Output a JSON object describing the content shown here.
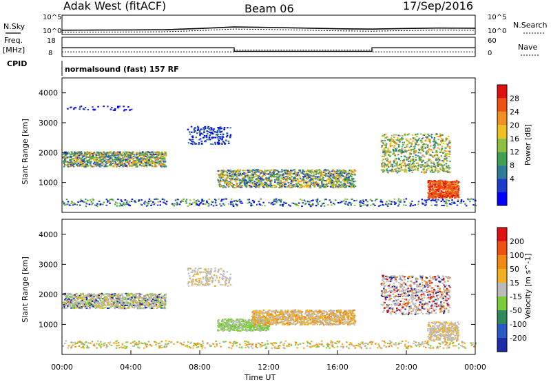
{
  "header": {
    "title": "Adak West (fitACF)",
    "beam": "Beam 06",
    "date": "17/Sep/2016"
  },
  "panels": {
    "nsky_label": "N.Sky",
    "nsky_ticks": [
      "10^5",
      "10^0"
    ],
    "nsearch_label": "N.Search",
    "nsearch_ticks": [
      "10^5",
      "10^0"
    ],
    "freq_label": "Freq.",
    "freq_unit": "[MHz]",
    "freq_ticks": [
      "18",
      "8"
    ],
    "nave_label": "Nave",
    "nave_ticks": [
      "60",
      "0"
    ],
    "cpid_label": "CPID",
    "cpid_value": "normalsound (fast) 157 RF"
  },
  "chart_data": [
    {
      "type": "line",
      "name": "nsky-nsearch",
      "x": [
        "00:00",
        "02:00",
        "04:00",
        "06:00",
        "08:00",
        "10:00",
        "12:00",
        "14:00",
        "16:00",
        "18:00",
        "20:00",
        "22:00",
        "24:00"
      ],
      "series": [
        {
          "name": "N.Sky",
          "values": [
            10,
            11,
            12,
            14,
            30,
            80,
            60,
            40,
            25,
            20,
            30,
            40,
            35
          ]
        }
      ],
      "ylim": [
        1,
        100000
      ],
      "yscale": "log"
    },
    {
      "type": "line",
      "name": "freq-nave",
      "x": [
        "00:00",
        "10:00",
        "10:00",
        "18:00",
        "18:00",
        "24:00"
      ],
      "series": [
        {
          "name": "Freq.",
          "values": [
            12.5,
            12.5,
            10.5,
            10.5,
            12.5,
            12.5
          ]
        },
        {
          "name": "Nave",
          "values": [
            11,
            11,
            12,
            12,
            11,
            11
          ]
        }
      ],
      "ylim": [
        8,
        18
      ]
    },
    {
      "type": "heatmap",
      "name": "power",
      "ylabel": "Slant Range [km]",
      "colorbar_label": "Power [dB]",
      "colorbar_ticks": [
        "28",
        "24",
        "20",
        "16",
        "12",
        "8",
        "4"
      ],
      "colors": [
        "#0000ff",
        "#1e3ccc",
        "#2e7d96",
        "#40a050",
        "#8cc040",
        "#f0c020",
        "#f09020",
        "#f05010",
        "#e01010"
      ],
      "ylim": [
        0,
        4500
      ],
      "yticks": [
        1000,
        2000,
        3000,
        4000
      ],
      "xlim": [
        0,
        24
      ]
    },
    {
      "type": "heatmap",
      "name": "velocity",
      "ylabel": "Slant Range [km]",
      "colorbar_label": "Velocity [m s^-1]",
      "colorbar_ticks": [
        "200",
        "100",
        "50",
        "15",
        "-15",
        "-50",
        "-100",
        "-200"
      ],
      "colors": [
        "#1c2ca8",
        "#2a58c4",
        "#2e8a5a",
        "#7acc3a",
        "#bbbbbb",
        "#f0b020",
        "#f08a10",
        "#f05010",
        "#e01010"
      ],
      "ylim": [
        0,
        4500
      ],
      "yticks": [
        1000,
        2000,
        3000,
        4000
      ],
      "xlim": [
        0,
        24
      ]
    }
  ],
  "xaxis": {
    "ticks": [
      "00:00",
      "04:00",
      "08:00",
      "12:00",
      "16:00",
      "20:00",
      "00:00"
    ],
    "label": "Time UT"
  },
  "colors": {
    "gray": "#bbbbbb",
    "frame": "#000000"
  }
}
